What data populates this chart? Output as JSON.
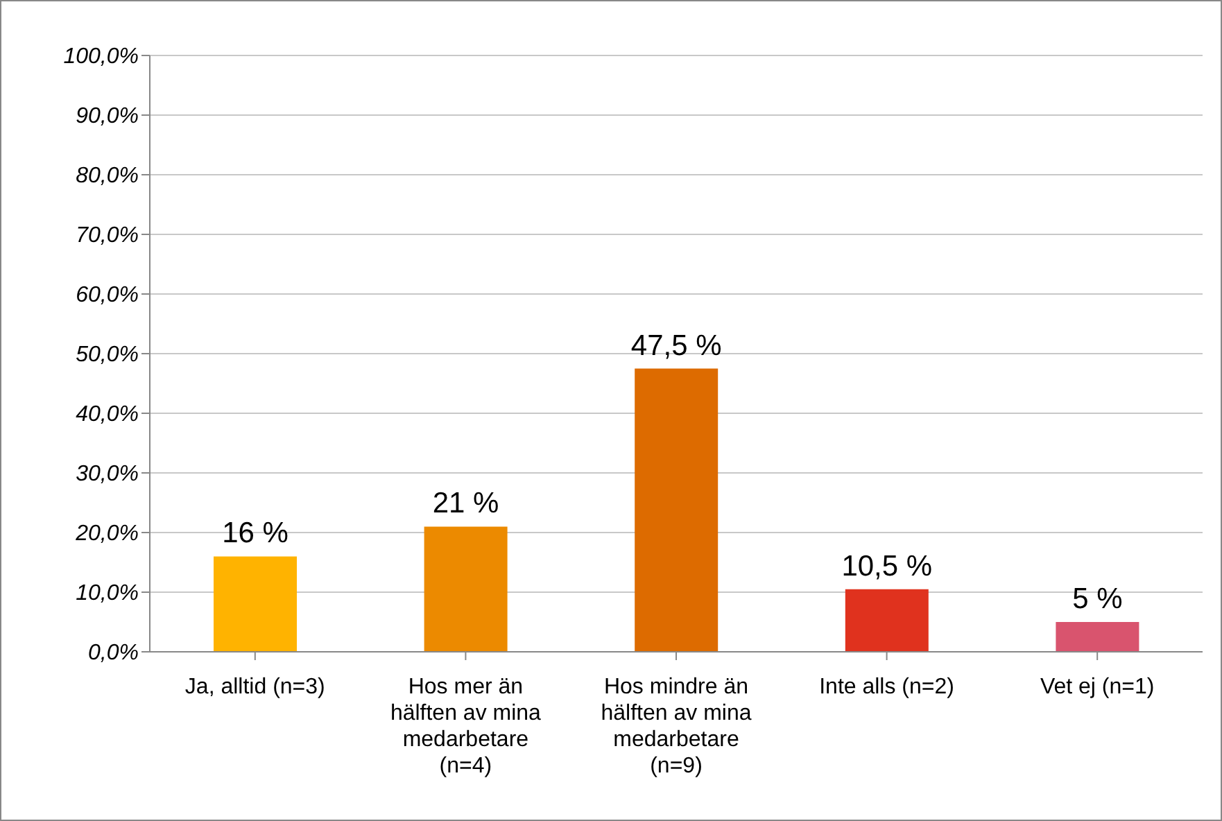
{
  "chart_data": {
    "type": "bar",
    "categories": [
      "Ja, alltid (n=3)",
      "Hos mer än hälften av mina medarbetare (n=4)",
      "Hos mindre än hälften av mina medarbetare (n=9)",
      "Inte alls (n=2)",
      "Vet ej (n=1)"
    ],
    "values": [
      16,
      21,
      47.5,
      10.5,
      5
    ],
    "colors": [
      "#ffb300",
      "#ec8a00",
      "#dd6b00",
      "#e0321e",
      "#d9546e"
    ],
    "value_labels": [
      "16 %",
      "21 %",
      "47,5 %",
      "10,5 %",
      "5 %"
    ],
    "ylim": [
      0,
      100
    ],
    "yticks": [
      {
        "value": 0,
        "label": "0,0%"
      },
      {
        "value": 10,
        "label": "10,0%"
      },
      {
        "value": 20,
        "label": "20,0%"
      },
      {
        "value": 30,
        "label": "30,0%"
      },
      {
        "value": 40,
        "label": "40,0%"
      },
      {
        "value": 50,
        "label": "50,0%"
      },
      {
        "value": 60,
        "label": "60,0%"
      },
      {
        "value": 70,
        "label": "70,0%"
      },
      {
        "value": 80,
        "label": "80,0%"
      },
      {
        "value": 90,
        "label": "90,0%"
      },
      {
        "value": 100,
        "label": "100,0%"
      }
    ],
    "grid": "y"
  }
}
